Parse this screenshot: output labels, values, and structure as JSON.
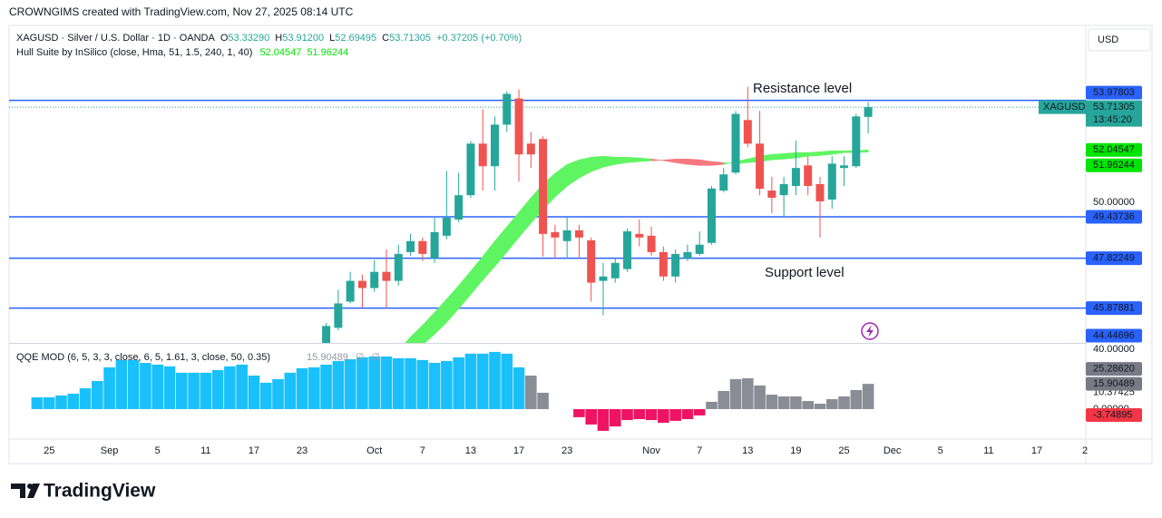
{
  "header": {
    "watermark": "CROWNGIMS created with TradingView.com, Nov 27, 2025 08:14 UTC"
  },
  "chart_data": {
    "type": "candlestick",
    "symbol_line": "XAGUSD · Silver / U.S. Dollar · 1D · OANDA",
    "ohlc_legend": [
      {
        "key": "O",
        "value": "53.33290"
      },
      {
        "key": "H",
        "value": "53.91200"
      },
      {
        "key": "L",
        "value": "52.69495"
      },
      {
        "key": "C",
        "value": "53.71305"
      }
    ],
    "change": "+0.37205 (+0.70%)",
    "currency": "USD",
    "ticker": "XAGUSD",
    "countdown": "13:45:20",
    "xlim": [
      -2.33,
      87.07
    ],
    "xticks": [
      {
        "value": 1,
        "label": "25"
      },
      {
        "value": 6,
        "label": "Sep"
      },
      {
        "value": 10,
        "label": "5"
      },
      {
        "value": 14,
        "label": "11"
      },
      {
        "value": 18,
        "label": "17"
      },
      {
        "value": 22,
        "label": "23"
      },
      {
        "value": 28,
        "label": "Oct"
      },
      {
        "value": 32,
        "label": "7"
      },
      {
        "value": 36,
        "label": "13"
      },
      {
        "value": 40,
        "label": "17"
      },
      {
        "value": 44,
        "label": "23"
      },
      {
        "value": 51,
        "label": "Nov"
      },
      {
        "value": 55,
        "label": "7"
      },
      {
        "value": 59,
        "label": "13"
      },
      {
        "value": 63,
        "label": "19"
      },
      {
        "value": 67,
        "label": "25"
      },
      {
        "value": 71,
        "label": "Dec"
      },
      {
        "value": 75,
        "label": "5"
      },
      {
        "value": 79,
        "label": "11"
      },
      {
        "value": 83,
        "label": "17"
      },
      {
        "value": 87,
        "label": "2"
      }
    ],
    "open": [
      null,
      null,
      null,
      null,
      null,
      null,
      null,
      null,
      null,
      null,
      null,
      null,
      null,
      null,
      null,
      null,
      null,
      null,
      null,
      null,
      null,
      null,
      null,
      null,
      44.2,
      45.11,
      46.13,
      46.94,
      46.66,
      47.29,
      46.94,
      48.06,
      48.49,
      47.82,
      48.7,
      49.33,
      50.28,
      52.29,
      51.41,
      53.03,
      54.05,
      52.29,
      52.47,
      48.84,
      48.49,
      48.91,
      48.52,
      46.94,
      47.04,
      47.4,
      48.77,
      48.7,
      48.06,
      47.11,
      47.82,
      47.99,
      48.42,
      50.46,
      51.16,
      53.21,
      52.29,
      50.46,
      50.28,
      50.64,
      51.44,
      50.71,
      50.11,
      51.34,
      51.41,
      53.3329
    ],
    "high": [
      null,
      null,
      null,
      null,
      null,
      null,
      null,
      null,
      null,
      null,
      null,
      null,
      null,
      null,
      null,
      null,
      null,
      null,
      null,
      null,
      null,
      null,
      null,
      null,
      45.3,
      46.59,
      47.29,
      47.18,
      47.75,
      48.17,
      48.35,
      48.77,
      48.63,
      49.4,
      51.23,
      51.16,
      52.4,
      53.63,
      53.35,
      54.33,
      54.4,
      52.75,
      52.57,
      49.12,
      49.4,
      49.12,
      48.63,
      47.64,
      47.82,
      48.98,
      49.33,
      49.05,
      48.28,
      48.17,
      48.35,
      48.87,
      50.64,
      51.34,
      53.56,
      54.51,
      53.56,
      50.99,
      50.99,
      52.4,
      51.8,
      50.99,
      51.8,
      51.8,
      53.45,
      53.912
    ],
    "low": [
      null,
      null,
      null,
      null,
      null,
      null,
      null,
      null,
      null,
      null,
      null,
      null,
      null,
      null,
      null,
      null,
      null,
      null,
      null,
      null,
      null,
      null,
      null,
      null,
      44.0,
      45.01,
      46.06,
      45.88,
      46.51,
      45.88,
      46.76,
      47.92,
      47.71,
      47.64,
      48.56,
      49.23,
      50.18,
      50.46,
      50.46,
      52.75,
      50.81,
      51.34,
      47.89,
      47.82,
      47.82,
      47.82,
      46.13,
      45.6,
      46.87,
      47.29,
      48.28,
      47.92,
      46.94,
      46.87,
      47.71,
      47.92,
      48.35,
      50.39,
      51.09,
      52.15,
      50.28,
      49.58,
      49.4,
      50.28,
      50.28,
      48.63,
      49.75,
      50.64,
      51.34,
      52.69495
    ],
    "close": [
      null,
      null,
      null,
      null,
      null,
      null,
      null,
      null,
      null,
      null,
      null,
      null,
      null,
      null,
      null,
      null,
      null,
      null,
      null,
      null,
      null,
      null,
      null,
      null,
      45.18,
      46.06,
      46.94,
      46.66,
      47.29,
      46.94,
      47.99,
      48.49,
      47.99,
      48.84,
      49.4,
      50.28,
      52.29,
      51.41,
      53.03,
      54.23,
      51.87,
      51.87,
      48.77,
      48.63,
      48.91,
      48.63,
      46.87,
      47.11,
      47.64,
      48.87,
      48.63,
      48.06,
      47.11,
      47.99,
      48.06,
      48.35,
      50.54,
      51.09,
      53.45,
      52.29,
      50.53,
      50.18,
      50.71,
      51.34,
      50.64,
      50.04,
      51.51,
      51.44,
      53.35,
      53.71305
    ],
    "up_color": "#26a69a",
    "down_color": "#ef5350",
    "ylim": [
      44.52,
      56.9
    ],
    "yticks": [
      {
        "value": 50,
        "label": "50.00000"
      }
    ],
    "levels": {
      "values": [
        53.97803,
        49.43736,
        47.82249,
        45.87881,
        44.44696
      ],
      "color": "#2962ff"
    },
    "annotations": [
      {
        "text": "Resistance level",
        "color": "#f23645"
      },
      {
        "text": "Support level",
        "color": "#2962ff"
      }
    ],
    "hull": {
      "label": "Hull Suite by InSilico (close, Hma, 51, 1.5, 240, 1, 40)",
      "a": [
        null,
        null,
        null,
        null,
        null,
        null,
        null,
        null,
        null,
        null,
        null,
        null,
        null,
        null,
        null,
        null,
        null,
        null,
        null,
        null,
        null,
        null,
        null,
        null,
        null,
        null,
        null,
        null,
        null,
        null,
        44.23,
        44.75,
        45.21,
        45.71,
        46.23,
        46.76,
        47.32,
        47.89,
        48.49,
        49.05,
        49.61,
        50.18,
        50.71,
        51.13,
        51.48,
        51.66,
        51.76,
        51.8,
        51.76,
        51.76,
        51.73,
        51.69,
        51.63,
        51.55,
        51.48,
        51.44,
        51.44,
        51.48,
        51.59,
        51.69,
        51.8,
        51.87,
        51.9,
        51.94,
        51.94,
        51.97,
        52.01,
        52.01,
        52.01,
        52.04547
      ],
      "b": [
        null,
        null,
        null,
        null,
        null,
        null,
        null,
        null,
        null,
        null,
        null,
        null,
        null,
        null,
        null,
        null,
        null,
        null,
        null,
        null,
        null,
        null,
        null,
        null,
        null,
        null,
        null,
        null,
        null,
        null,
        43.66,
        44.05,
        44.44,
        44.86,
        45.32,
        45.85,
        46.41,
        46.97,
        47.5,
        48.06,
        48.63,
        49.19,
        49.72,
        50.21,
        50.63,
        50.95,
        51.2,
        51.37,
        51.48,
        51.55,
        51.59,
        51.62,
        51.65,
        51.69,
        51.69,
        51.66,
        51.59,
        51.55,
        51.51,
        51.55,
        51.59,
        51.66,
        51.69,
        51.73,
        51.8,
        51.83,
        51.87,
        51.94,
        51.94,
        51.96244
      ],
      "up_color": "#5ff562",
      "down_color": "#f7787e",
      "badge_color": "#00e600"
    },
    "qqe": {
      "label": "QQE MOD (6, 5, 3, 3, close, 6, 5, 1.61, 3, close, 50, 0.35)",
      "legend_extra": [
        "∅",
        "∅"
      ],
      "values": [
        7.4,
        7.4,
        8.6,
        9.7,
        13.1,
        17.7,
        26.3,
        30.9,
        30.9,
        29.1,
        28,
        26.9,
        22.9,
        22.9,
        22.9,
        24.6,
        26.9,
        28,
        21.1,
        16.6,
        18.9,
        22.9,
        25.7,
        26.3,
        28,
        30.3,
        31.4,
        32.6,
        33.1,
        33.1,
        32,
        32,
        30.9,
        29.1,
        30.3,
        32.6,
        34.9,
        34.9,
        36,
        34.9,
        26.3,
        21.1,
        10.3,
        null,
        null,
        -5.1,
        -9.7,
        -13.7,
        -10.9,
        -6.9,
        -6.3,
        -6.9,
        -8.6,
        -7.4,
        -6.3,
        -4,
        4.6,
        11.4,
        18.9,
        19.4,
        14.9,
        9.1,
        8,
        8,
        5.1,
        3.4,
        6.3,
        8,
        12,
        15.90489
      ],
      "colors": [
        "#1ac0f9",
        "#1ac0f9",
        "#1ac0f9",
        "#1ac0f9",
        "#1ac0f9",
        "#1ac0f9",
        "#1ac0f9",
        "#1ac0f9",
        "#1ac0f9",
        "#1ac0f9",
        "#1ac0f9",
        "#1ac0f9",
        "#1ac0f9",
        "#1ac0f9",
        "#1ac0f9",
        "#1ac0f9",
        "#1ac0f9",
        "#1ac0f9",
        "#1ac0f9",
        "#1ac0f9",
        "#1ac0f9",
        "#1ac0f9",
        "#1ac0f9",
        "#1ac0f9",
        "#1ac0f9",
        "#1ac0f9",
        "#1ac0f9",
        "#1ac0f9",
        "#1ac0f9",
        "#1ac0f9",
        "#1ac0f9",
        "#1ac0f9",
        "#1ac0f9",
        "#1ac0f9",
        "#1ac0f9",
        "#1ac0f9",
        "#1ac0f9",
        "#1ac0f9",
        "#1ac0f9",
        "#1ac0f9",
        "#1ac0f9",
        "#8a8d96",
        "#8a8d96",
        null,
        null,
        "#ee1463",
        "#ee1463",
        "#ee1463",
        "#ee1463",
        "#ee1463",
        "#ee1463",
        "#ee1463",
        "#ee1463",
        "#ee1463",
        "#ee1463",
        "#ee1463",
        "#8a8d96",
        "#8a8d96",
        "#8a8d96",
        "#8a8d96",
        "#8a8d96",
        "#8a8d96",
        "#8a8d96",
        "#8a8d96",
        "#8a8d96",
        "#8a8d96",
        "#8a8d96",
        "#8a8d96",
        "#8a8d96",
        "#8a8d96"
      ],
      "ylim": [
        -18.3,
        41.1
      ],
      "yticks": [
        {
          "value": 40,
          "label": "40.00000"
        },
        10.37425,
        {
          "value": 0,
          "label": "0.00000"
        }
      ],
      "markers": [
        {
          "value": 25.2862,
          "label": "25.28620",
          "color": "#787b86"
        },
        {
          "value": -3.74895,
          "label": "-3.74895",
          "color": "#f23645"
        }
      ],
      "badge_color": "#787b86"
    }
  },
  "footer": {
    "brand": "TradingView"
  }
}
